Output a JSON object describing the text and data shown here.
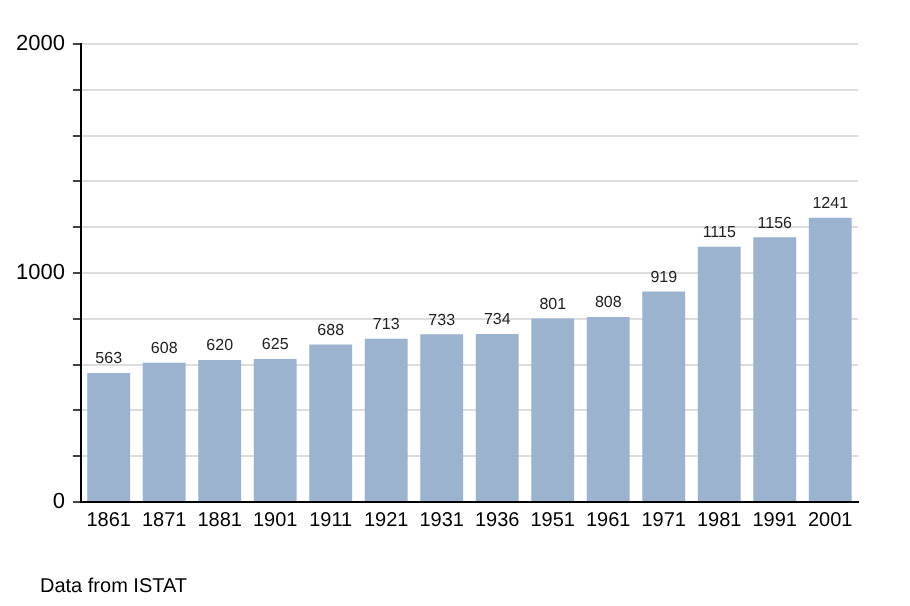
{
  "chart_data": {
    "type": "bar",
    "categories": [
      "1861",
      "1871",
      "1881",
      "1901",
      "1911",
      "1921",
      "1931",
      "1936",
      "1951",
      "1961",
      "1971",
      "1981",
      "1991",
      "2001"
    ],
    "values": [
      563,
      608,
      620,
      625,
      688,
      713,
      733,
      734,
      801,
      808,
      919,
      1115,
      1156,
      1241
    ],
    "color": "#9bb3cf",
    "ylim": [
      0,
      2000
    ],
    "yticks": [
      0,
      {
        "value": 200,
        "label": null
      },
      {
        "value": 400,
        "label": null
      },
      {
        "value": 600,
        "label": null
      },
      {
        "value": 800,
        "label": null
      },
      1000,
      {
        "value": 1200,
        "label": null
      },
      {
        "value": 1400,
        "label": null
      },
      {
        "value": 1600,
        "label": null
      },
      {
        "value": 1800,
        "label": null
      },
      2000
    ],
    "grid": "y",
    "data_labels": true,
    "legend": false,
    "annotations": [
      "Data from ISTAT"
    ]
  }
}
